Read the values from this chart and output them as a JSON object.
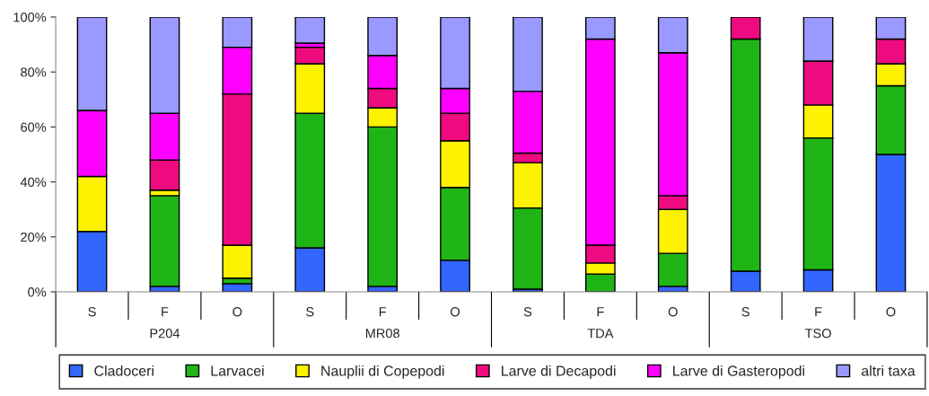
{
  "chart_data": {
    "type": "bar",
    "stacked": true,
    "categories": [
      "S",
      "F",
      "O",
      "S",
      "F",
      "O",
      "S",
      "F",
      "O",
      "S",
      "F",
      "O"
    ],
    "annotations": [
      "P204",
      "MR08",
      "TDA",
      "TSO"
    ],
    "ylim": [
      0,
      100
    ],
    "yticks": [
      {
        "value": 0,
        "label": "0%"
      },
      {
        "value": 20,
        "label": "20%"
      },
      {
        "value": 40,
        "label": "40%"
      },
      {
        "value": 60,
        "label": "60%"
      },
      {
        "value": 80,
        "label": "80%"
      },
      {
        "value": 100,
        "label": "100%"
      }
    ],
    "grid": false,
    "legend": "bottom",
    "series": [
      {
        "name": "Cladoceri",
        "color": "#3366ff",
        "values": [
          22,
          2,
          3,
          16,
          2,
          11.5,
          1,
          0,
          2,
          7.5,
          8,
          50
        ]
      },
      {
        "name": "Larvacei",
        "color": "#1fb516",
        "values": [
          0,
          33,
          2,
          49,
          58,
          26.5,
          29.5,
          6.5,
          12,
          84.5,
          48,
          25
        ]
      },
      {
        "name": "Nauplii di Copepodi",
        "color": "#fdf200",
        "values": [
          20,
          2,
          12,
          18,
          7,
          17,
          16.5,
          4,
          16,
          0,
          12,
          8
        ]
      },
      {
        "name": "Larve di Decapodi",
        "color": "#f00a80",
        "values": [
          0,
          11,
          55,
          6,
          7,
          10,
          3.5,
          6.5,
          5,
          8,
          16,
          9
        ]
      },
      {
        "name": "Larve di Gasteropodi",
        "color": "#ff00ff",
        "values": [
          24,
          17,
          17,
          1.5,
          12,
          9,
          22.5,
          75,
          52,
          0,
          0,
          0
        ]
      },
      {
        "name": "altri taxa",
        "color": "#9999ff",
        "values": [
          34,
          35,
          11,
          9.5,
          14,
          26,
          27,
          8,
          13,
          0,
          16,
          8
        ]
      }
    ]
  }
}
